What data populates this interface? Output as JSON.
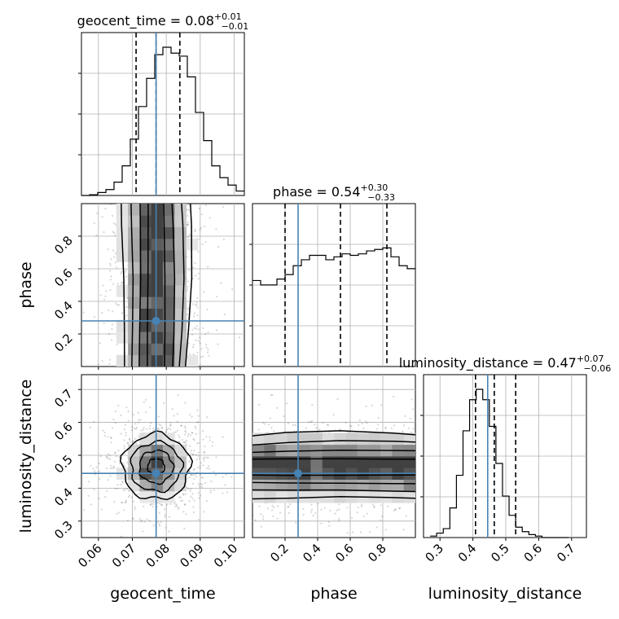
{
  "chart_data": {
    "type": "corner",
    "parameters": [
      "geocent_time",
      "phase",
      "luminosity_distance"
    ],
    "truths": {
      "geocent_time": 0.077,
      "phase": 0.28,
      "luminosity_distance": 0.445
    },
    "truth_color": "#4682b4",
    "ranges": {
      "geocent_time": [
        0.055,
        0.103
      ],
      "phase": [
        0.0,
        1.0
      ],
      "luminosity_distance": [
        0.25,
        0.745
      ]
    },
    "ticks": {
      "geocent_time": [
        "0.06",
        "0.07",
        "0.08",
        "0.09",
        "0.10"
      ],
      "phase": [
        "0.2",
        "0.4",
        "0.6",
        "0.8"
      ],
      "luminosity_distance": [
        "0.3",
        "0.4",
        "0.5",
        "0.6",
        "0.7"
      ]
    },
    "titles": [
      {
        "param": "geocent_time",
        "label": "geocent_time",
        "median": "0.08",
        "plus": "+0.01",
        "minus": "−0.01"
      },
      {
        "param": "phase",
        "label": "phase",
        "median": "0.54",
        "plus": "+0.30",
        "minus": "−0.33"
      },
      {
        "param": "luminosity_distance",
        "label": "luminosity_distance",
        "median": "0.47",
        "plus": "+0.07",
        "minus": "−0.06"
      }
    ],
    "quantiles": {
      "geocent_time": [
        0.0711,
        0.077,
        0.084
      ],
      "phase": [
        0.2,
        0.54,
        0.825
      ],
      "luminosity_distance": [
        0.408,
        0.465,
        0.53
      ]
    },
    "histograms": {
      "geocent_time": {
        "edges_start": 0.055,
        "bin_width": 0.0024,
        "counts": [
          0,
          0.005,
          0.02,
          0.04,
          0.09,
          0.2,
          0.38,
          0.6,
          0.79,
          0.95,
          1.0,
          0.96,
          0.94,
          0.8,
          0.56,
          0.37,
          0.2,
          0.12,
          0.07,
          0.03,
          0.01
        ]
      },
      "phase": {
        "edges_start": 0.0,
        "bin_width": 0.05,
        "counts": [
          0.58,
          0.55,
          0.55,
          0.59,
          0.62,
          0.68,
          0.72,
          0.75,
          0.75,
          0.72,
          0.74,
          0.76,
          0.75,
          0.76,
          0.78,
          0.79,
          0.8,
          0.74,
          0.68,
          0.66
        ]
      },
      "luminosity_distance": {
        "edges_start": 0.27,
        "bin_width": 0.02,
        "counts": [
          0.01,
          0.03,
          0.06,
          0.2,
          0.42,
          0.72,
          0.93,
          1.0,
          0.93,
          0.75,
          0.5,
          0.28,
          0.15,
          0.07,
          0.04,
          0.02,
          0.01,
          0.0,
          0.0,
          0.0,
          0.0
        ]
      }
    },
    "pair_panels": [
      {
        "x": "geocent_time",
        "y": "phase",
        "sigma_x": 0.005,
        "sigma_y": 0.3
      },
      {
        "x": "geocent_time",
        "y": "luminosity_distance",
        "sigma_x": 0.005,
        "sigma_y": 0.05
      },
      {
        "x": "phase",
        "y": "luminosity_distance",
        "sigma_x": 0.3,
        "sigma_y": 0.05
      }
    ],
    "xlabels": [
      "geocent_time",
      "phase",
      "luminosity_distance"
    ],
    "ylabels": [
      "phase",
      "luminosity_distance"
    ]
  }
}
